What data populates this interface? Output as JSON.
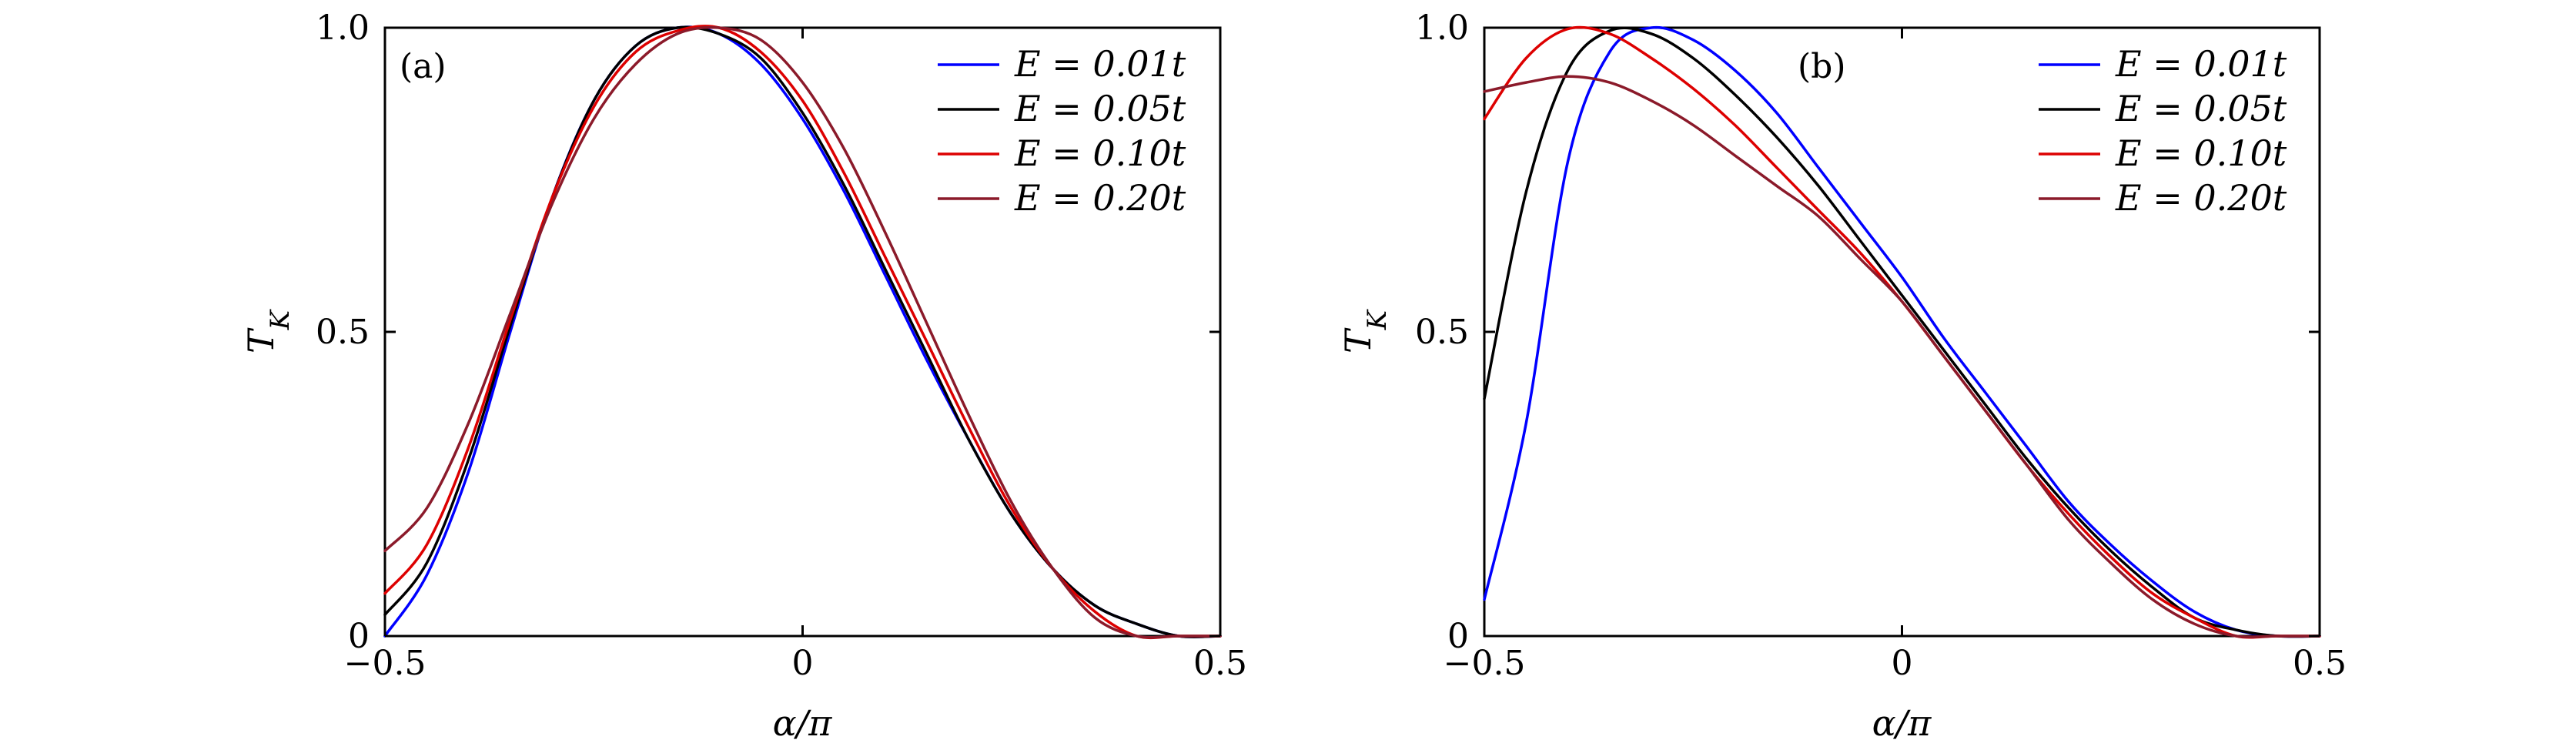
{
  "chart_data": [
    {
      "type": "line",
      "panel_label": "(a)",
      "xlabel": "α/π",
      "ylabel": "T_K",
      "xlim": [
        -0.5,
        0.5
      ],
      "ylim": [
        0,
        1.0
      ],
      "xticks": [
        -0.5,
        0,
        0.5
      ],
      "xtick_labels": [
        "−0.5",
        "0",
        "0.5"
      ],
      "yticks": [
        0,
        0.5,
        1.0
      ],
      "ytick_labels": [
        "0",
        "0.5",
        "1.0"
      ],
      "grid": false,
      "legend_position": "top-right",
      "x": [
        -0.5,
        -0.45,
        -0.4,
        -0.35,
        -0.3,
        -0.25,
        -0.2,
        -0.15,
        -0.1,
        -0.05,
        0,
        0.05,
        0.1,
        0.15,
        0.2,
        0.25,
        0.3,
        0.35,
        0.4,
        0.45,
        0.5
      ],
      "series": [
        {
          "name": "E = 0.01t",
          "color": "#0000ff",
          "values": [
            0.0,
            0.1,
            0.27,
            0.5,
            0.72,
            0.88,
            0.97,
            1.0,
            0.99,
            0.94,
            0.85,
            0.73,
            0.59,
            0.45,
            0.32,
            0.2,
            0.11,
            0.05,
            0.02,
            0.0,
            0.0
          ]
        },
        {
          "name": "E = 0.05t",
          "color": "#000000",
          "values": [
            0.035,
            0.12,
            0.29,
            0.51,
            0.72,
            0.88,
            0.97,
            1.0,
            0.99,
            0.95,
            0.86,
            0.74,
            0.6,
            0.46,
            0.32,
            0.2,
            0.11,
            0.05,
            0.02,
            0.0,
            0.0
          ]
        },
        {
          "name": "E = 0.10t",
          "color": "#dd0000",
          "values": [
            0.07,
            0.15,
            0.31,
            0.52,
            0.72,
            0.87,
            0.96,
            0.995,
            1.0,
            0.96,
            0.88,
            0.76,
            0.62,
            0.48,
            0.34,
            0.21,
            0.11,
            0.04,
            0.0,
            0.0,
            0.0
          ]
        },
        {
          "name": "E = 0.20t",
          "color": "#8b1a2a",
          "values": [
            0.14,
            0.21,
            0.35,
            0.53,
            0.71,
            0.85,
            0.94,
            0.99,
            1.0,
            0.98,
            0.91,
            0.8,
            0.66,
            0.51,
            0.36,
            0.22,
            0.11,
            0.03,
            0.0,
            0.0,
            0.0
          ]
        }
      ]
    },
    {
      "type": "line",
      "panel_label": "(b)",
      "xlabel": "α/π",
      "ylabel": "T_K",
      "xlim": [
        -0.5,
        0.5
      ],
      "ylim": [
        0,
        1.0
      ],
      "xticks": [
        -0.5,
        0,
        0.5
      ],
      "xtick_labels": [
        "−0.5",
        "0",
        "0.5"
      ],
      "yticks": [
        0,
        0.5,
        1.0
      ],
      "ytick_labels": [
        "0",
        "0.5",
        "1.0"
      ],
      "grid": false,
      "legend_position": "top-right",
      "x": [
        -0.5,
        -0.45,
        -0.4,
        -0.35,
        -0.3,
        -0.25,
        -0.2,
        -0.15,
        -0.1,
        -0.05,
        0,
        0.05,
        0.1,
        0.15,
        0.2,
        0.25,
        0.3,
        0.35,
        0.4,
        0.45,
        0.5
      ],
      "series": [
        {
          "name": "E = 0.01t",
          "color": "#0000ff",
          "values": [
            0.06,
            0.35,
            0.78,
            0.96,
            1.0,
            0.98,
            0.93,
            0.86,
            0.77,
            0.68,
            0.59,
            0.49,
            0.4,
            0.31,
            0.22,
            0.15,
            0.09,
            0.04,
            0.01,
            0.0,
            0.0
          ]
        },
        {
          "name": "E = 0.05t",
          "color": "#000000",
          "values": [
            0.39,
            0.73,
            0.93,
            0.995,
            0.99,
            0.95,
            0.89,
            0.82,
            0.74,
            0.65,
            0.56,
            0.47,
            0.38,
            0.29,
            0.21,
            0.14,
            0.08,
            0.03,
            0.01,
            0.0,
            0.0
          ]
        },
        {
          "name": "E = 0.10t",
          "color": "#dd0000",
          "values": [
            0.85,
            0.95,
            0.998,
            0.99,
            0.95,
            0.9,
            0.84,
            0.77,
            0.7,
            0.63,
            0.55,
            0.46,
            0.37,
            0.28,
            0.2,
            0.13,
            0.07,
            0.03,
            0.0,
            0.0,
            0.0
          ]
        },
        {
          "name": "E = 0.20t",
          "color": "#8b1a2a",
          "values": [
            0.895,
            0.91,
            0.92,
            0.91,
            0.88,
            0.84,
            0.79,
            0.74,
            0.69,
            0.62,
            0.55,
            0.46,
            0.37,
            0.28,
            0.19,
            0.12,
            0.06,
            0.02,
            0.0,
            0.0,
            0.0
          ]
        }
      ]
    }
  ]
}
